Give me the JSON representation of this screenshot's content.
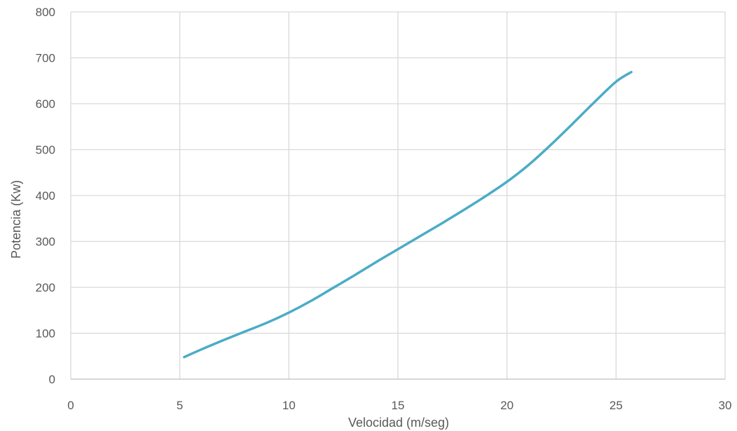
{
  "chart_data": {
    "type": "line",
    "title": "",
    "xlabel": "Velocidad (m/seg)",
    "ylabel": "Potencia (Kw)",
    "xlim": [
      0,
      30
    ],
    "ylim": [
      0,
      800
    ],
    "x_ticks": [
      "0",
      "5",
      "10",
      "15",
      "20",
      "25",
      "30"
    ],
    "y_ticks": [
      "0",
      "100",
      "200",
      "300",
      "400",
      "500",
      "600",
      "700",
      "800"
    ],
    "grid": true,
    "legend": "none",
    "series": [
      {
        "color": "#4bacc6",
        "x": [
          5.2,
          6,
          7,
          8,
          9,
          10,
          11,
          12,
          13,
          14,
          15,
          16,
          17,
          18,
          19,
          20,
          21,
          22,
          23,
          24,
          25,
          25.7
        ],
        "y": [
          48,
          65,
          85,
          104,
          123,
          145,
          170,
          198,
          226,
          255,
          283,
          311,
          339,
          368,
          398,
          430,
          467,
          510,
          556,
          603,
          648,
          669
        ]
      }
    ]
  }
}
